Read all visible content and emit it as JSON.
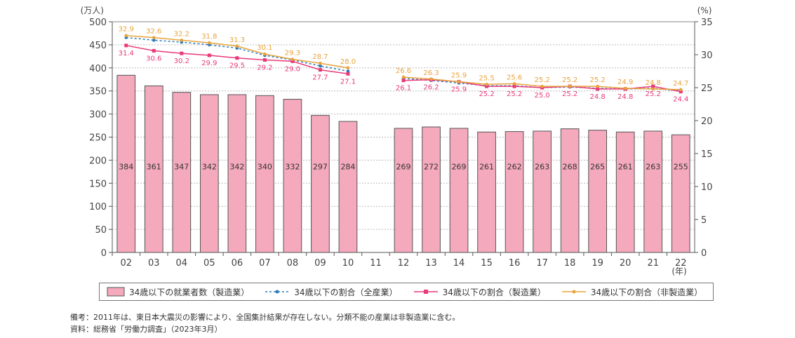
{
  "chart_data": {
    "type": "bar",
    "title": "",
    "y_left_unit": "(万人)",
    "y_right_unit": "(%)",
    "x_unit": "(年)",
    "ylim_left": [
      0,
      500
    ],
    "ylim_right": [
      0,
      35
    ],
    "y_left_ticks": [
      "0",
      "50",
      "100",
      "150",
      "200",
      "250",
      "300",
      "350",
      "400",
      "450",
      "500"
    ],
    "y_right_ticks": [
      "0",
      "5",
      "10",
      "15",
      "20",
      "25",
      "30",
      "35"
    ],
    "categories": [
      "02",
      "03",
      "04",
      "05",
      "06",
      "07",
      "08",
      "09",
      "10",
      "11",
      "12",
      "13",
      "14",
      "15",
      "16",
      "17",
      "18",
      "19",
      "20",
      "21",
      "22"
    ],
    "bars": {
      "name": "34歳以下の就業者数（製造業）",
      "color": "#f4a9bd",
      "values": [
        384,
        361,
        347,
        342,
        342,
        340,
        332,
        297,
        284,
        null,
        269,
        272,
        269,
        261,
        262,
        263,
        268,
        265,
        261,
        263,
        255
      ]
    },
    "lines": [
      {
        "name": "34歳以下の割合（全産業）",
        "color": "#2b7bb9",
        "style": "dotted",
        "values": [
          32.6,
          32.2,
          31.9,
          31.5,
          31.0,
          29.9,
          29.2,
          28.3,
          27.5,
          null,
          26.4,
          26.1,
          25.7,
          25.3,
          25.3,
          25.0,
          25.1,
          24.9,
          24.8,
          24.9,
          24.5
        ]
      },
      {
        "name": "34歳以下の割合（製造業）",
        "color": "#e8397a",
        "style": "solid",
        "values": [
          31.4,
          30.6,
          30.2,
          29.9,
          29.5,
          29.2,
          29.0,
          27.7,
          27.1,
          null,
          26.1,
          26.2,
          25.9,
          25.2,
          25.2,
          25.0,
          25.2,
          24.8,
          24.8,
          25.2,
          24.4
        ]
      },
      {
        "name": "34歳以下の割合（非製造業）",
        "color": "#e8a33c",
        "style": "solid",
        "values": [
          32.9,
          32.6,
          32.2,
          31.8,
          31.3,
          30.1,
          29.3,
          28.7,
          28.0,
          null,
          26.6,
          26.3,
          25.9,
          25.5,
          25.6,
          25.2,
          25.2,
          25.2,
          24.9,
          24.8,
          24.7
        ]
      }
    ],
    "legend_position": "bottom"
  },
  "legend": {
    "items": [
      "34歳以下の就業者数（製造業）",
      "34歳以下の割合（全産業）",
      "34歳以下の割合（製造業）",
      "34歳以下の割合（非製造業）"
    ]
  },
  "notes": {
    "line1": "備考：2011年は、東日本大震災の影響により、全国集計結果が存在しない。分類不能の産業は非製造業に含む。",
    "line2": "資料：総務省「労働力調査」（2023年3月）"
  }
}
